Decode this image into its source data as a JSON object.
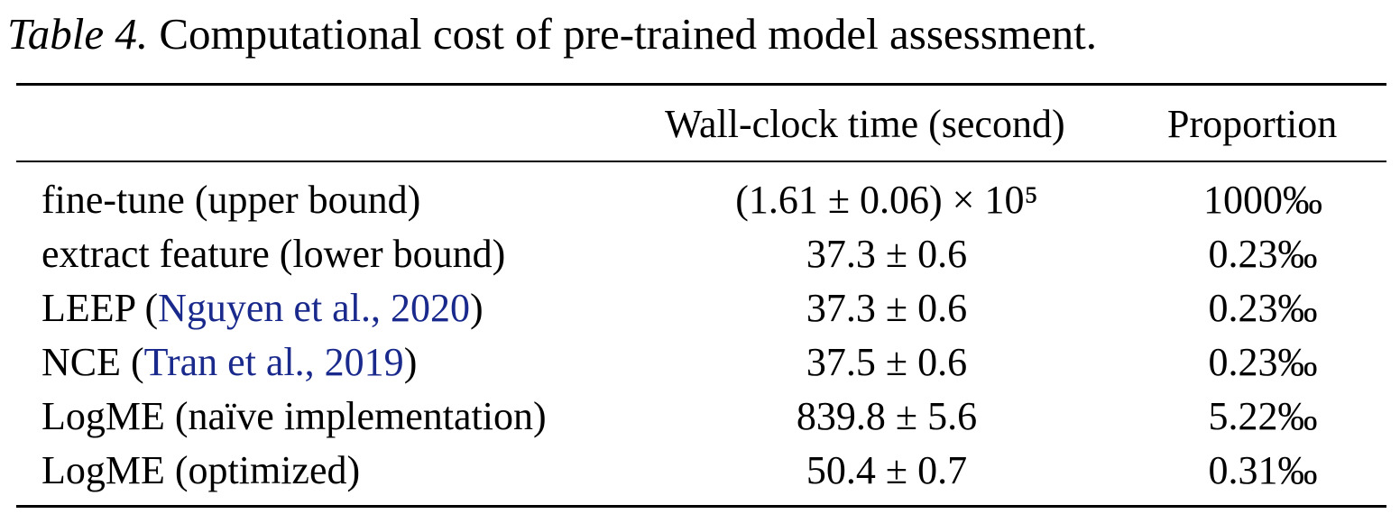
{
  "caption": {
    "label": "Table 4.",
    "text": "Computational cost of pre-trained model assessment."
  },
  "header": {
    "method": "",
    "time": "Wall-clock time (second)",
    "proportion": "Proportion"
  },
  "rows": [
    {
      "name": "fine-tune (upper bound)",
      "time": "(1.61 ± 0.06) × 10⁵",
      "proportion": "1000‰"
    },
    {
      "name": "extract feature (lower bound)",
      "time": "37.3 ± 0.6",
      "proportion": "0.23‰"
    },
    {
      "name_prefix": "LEEP (",
      "citation": "Nguyen et al., 2020",
      "name_suffix": ")",
      "time": "37.3 ± 0.6",
      "proportion": "0.23‰"
    },
    {
      "name_prefix": "NCE (",
      "citation": "Tran et al., 2019",
      "name_suffix": ")",
      "time": "37.5 ± 0.6",
      "proportion": "0.23‰"
    },
    {
      "name": "LogME (naïve implementation)",
      "time": "839.8 ± 5.6",
      "proportion": "5.22‰"
    },
    {
      "name": "LogME (optimized)",
      "time": "50.4 ± 0.7",
      "proportion": "0.31‰"
    }
  ],
  "colors": {
    "citation": "#1a2a8c",
    "text": "#000000"
  }
}
